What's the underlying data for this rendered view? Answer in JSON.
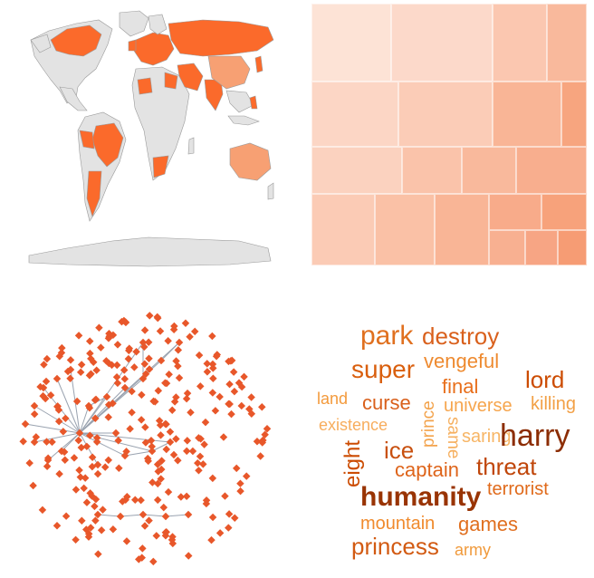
{
  "colors": {
    "highlight": "#fb6a2b",
    "highlight_light": "#f7a073",
    "land_gray": "#e3e3e3",
    "border_gray": "#9a9a9a",
    "node": "#e8572a",
    "edge": "#9aa3b0"
  },
  "treemap": {
    "colors": [
      "#fde3d6",
      "#fcd6c5",
      "#fbc6ad",
      "#f9b394",
      "#f7a57f"
    ]
  },
  "wordcloud": {
    "words": [
      {
        "text": "park",
        "color": "#e0701f"
      },
      {
        "text": "destroy",
        "color": "#d9601c"
      },
      {
        "text": "super",
        "color": "#d95f0e"
      },
      {
        "text": "vengeful",
        "color": "#ee8a2f"
      },
      {
        "text": "lord",
        "color": "#cc4c02"
      },
      {
        "text": "final",
        "color": "#e86f1c"
      },
      {
        "text": "land",
        "color": "#f39a3c"
      },
      {
        "text": "curse",
        "color": "#d9601c"
      },
      {
        "text": "prince",
        "color": "#f3a34c"
      },
      {
        "text": "universe",
        "color": "#f6a54d"
      },
      {
        "text": "killing",
        "color": "#f2a046"
      },
      {
        "text": "existence",
        "color": "#f7ad5d"
      },
      {
        "text": "same",
        "color": "#f6b060"
      },
      {
        "text": "saring",
        "color": "#f7b565"
      },
      {
        "text": "harry",
        "color": "#8c2d04"
      },
      {
        "text": "eight",
        "color": "#cc4c02"
      },
      {
        "text": "ice",
        "color": "#c8500f"
      },
      {
        "text": "captain",
        "color": "#de641a"
      },
      {
        "text": "threat",
        "color": "#c0460a"
      },
      {
        "text": "humanity",
        "color": "#993404"
      },
      {
        "text": "terrorist",
        "color": "#e06a1b"
      },
      {
        "text": "mountain",
        "color": "#f08a2c"
      },
      {
        "text": "games",
        "color": "#e06f1f"
      },
      {
        "text": "princess",
        "color": "#d25a12"
      },
      {
        "text": "army",
        "color": "#f09a3c"
      }
    ]
  }
}
